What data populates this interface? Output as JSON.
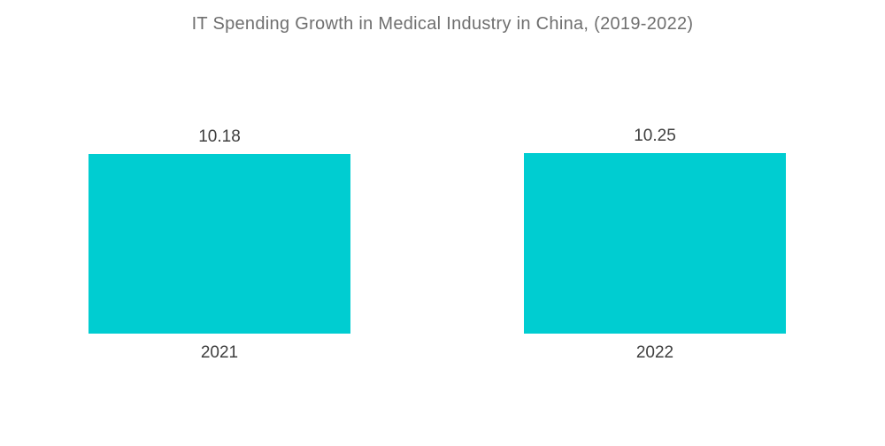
{
  "title": "IT Spending Growth in Medical Industry in China, (2019-2022)",
  "colors": {
    "background": "#ffffff",
    "bar": "#00cdd1",
    "title_text": "#6f6f6f",
    "label_text": "#3f3f3f"
  },
  "chart_data": {
    "type": "bar",
    "title": "IT Spending Growth in Medical Industry in China, (2019-2022)",
    "categories": [
      "2021",
      "2022"
    ],
    "values": [
      10.18,
      10.25
    ],
    "value_labels": [
      "10.18",
      "10.25"
    ],
    "series": [
      {
        "name": "IT Spending Growth",
        "values": [
          10.18,
          10.25
        ]
      }
    ],
    "xlabel": "",
    "ylabel": "",
    "ylim": [
      0,
      10.25
    ],
    "grid": false,
    "legend_position": "none",
    "axes_visible": false,
    "bar_color": "#00cdd1"
  }
}
